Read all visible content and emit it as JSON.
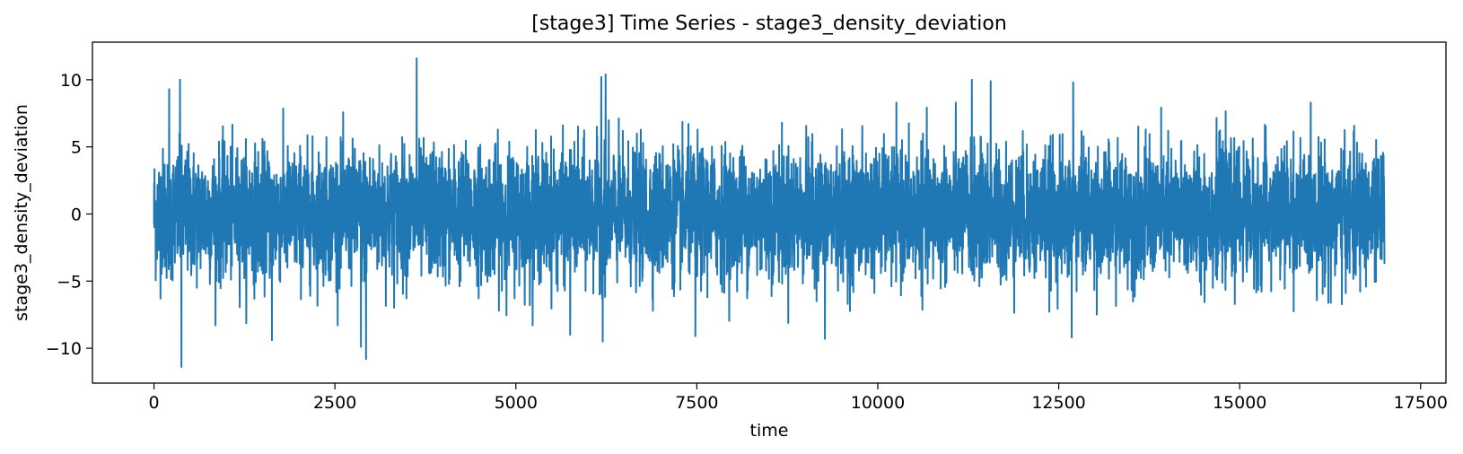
{
  "chart_data": {
    "type": "line",
    "title": "[stage3] Time Series - stage3_density_deviation",
    "xlabel": "time",
    "ylabel": "stage3_density_deviation",
    "xlim": [
      -850,
      17850
    ],
    "ylim": [
      -12.6,
      12.8
    ],
    "x_ticks": [
      0,
      2500,
      5000,
      7500,
      10000,
      12500,
      15000,
      17500
    ],
    "x_tick_labels": [
      "0",
      "2500",
      "5000",
      "7500",
      "10000",
      "12500",
      "15000",
      "17500"
    ],
    "y_ticks": [
      -10,
      -5,
      0,
      5,
      10
    ],
    "y_tick_labels": [
      "−10",
      "−5",
      "0",
      "5",
      "10"
    ],
    "grid": false,
    "legend": "none",
    "series": [
      {
        "color": "#1f77b4",
        "x_range": [
          0,
          17000
        ],
        "n_points": 17000,
        "approx_std": 2.4,
        "peaks": [
          {
            "x": 3630,
            "y": 11.6
          },
          {
            "x": 6240,
            "y": 10.4
          },
          {
            "x": 6180,
            "y": 10.2
          },
          {
            "x": 360,
            "y": 10.0
          },
          {
            "x": 11300,
            "y": 10.0
          },
          {
            "x": 11560,
            "y": 9.9
          },
          {
            "x": 12700,
            "y": 9.8
          },
          {
            "x": 210,
            "y": 9.3
          }
        ],
        "troughs": [
          {
            "x": 380,
            "y": -11.4
          },
          {
            "x": 2930,
            "y": -10.8
          },
          {
            "x": 2860,
            "y": -9.9
          },
          {
            "x": 6200,
            "y": -9.5
          },
          {
            "x": 1630,
            "y": -9.4
          },
          {
            "x": 9270,
            "y": -9.3
          },
          {
            "x": 12680,
            "y": -9.2
          },
          {
            "x": 7480,
            "y": -9.1
          },
          {
            "x": 5750,
            "y": -9.0
          }
        ]
      }
    ]
  }
}
